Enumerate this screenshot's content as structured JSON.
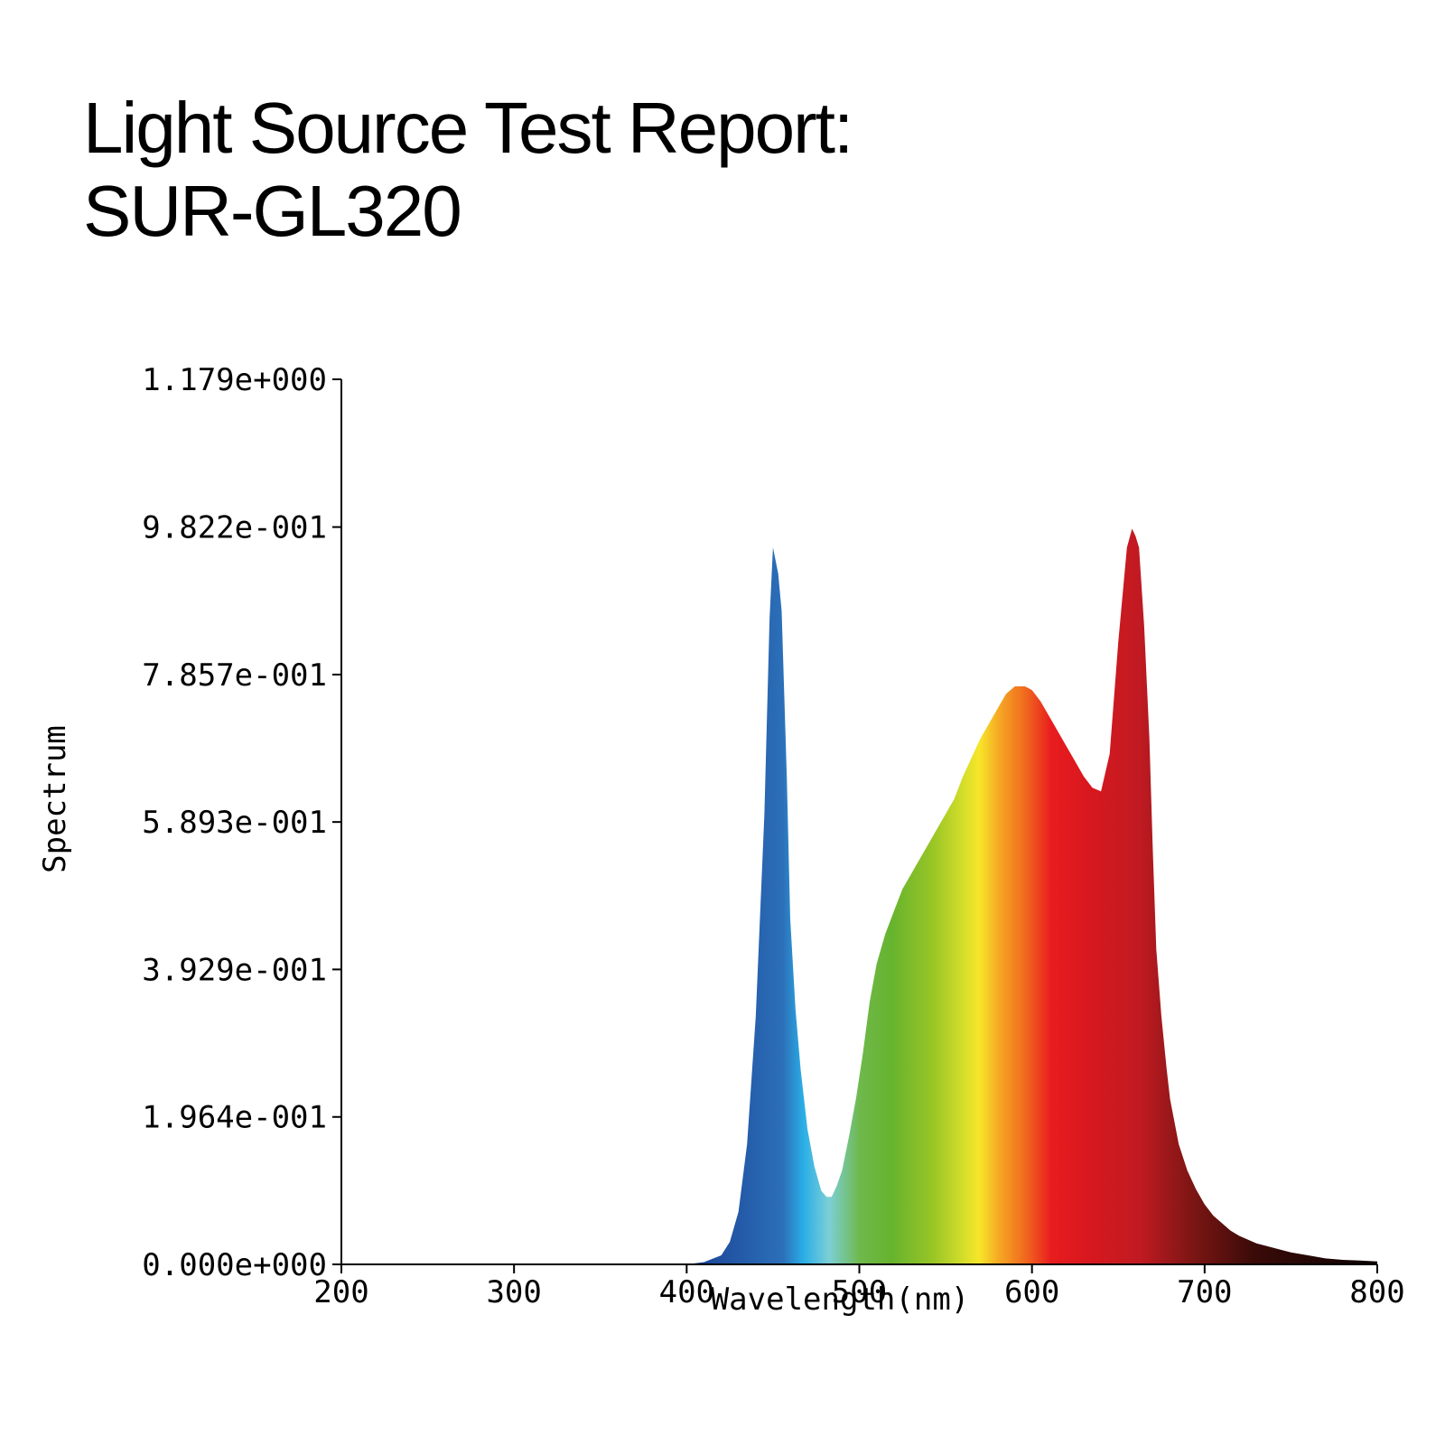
{
  "title": {
    "line1": "Light Source Test Report:",
    "line2": "SUR-GL320"
  },
  "chart_data": {
    "type": "area",
    "xlabel": "Wavelength(nm)",
    "ylabel": "Spectrum",
    "xlim": [
      200,
      800
    ],
    "ylim": [
      0,
      1.179
    ],
    "x_ticks": [
      200,
      300,
      400,
      500,
      600,
      700,
      800
    ],
    "y_ticks": [
      {
        "value": 0,
        "label": "0.000e+000"
      },
      {
        "value": 0.1964,
        "label": "1.964e-001"
      },
      {
        "value": 0.3929,
        "label": "3.929e-001"
      },
      {
        "value": 0.5893,
        "label": "5.893e-001"
      },
      {
        "value": 0.7857,
        "label": "7.857e-001"
      },
      {
        "value": 0.9822,
        "label": "9.822e-001"
      },
      {
        "value": 1.179,
        "label": "1.179e+000"
      }
    ],
    "grid": false,
    "fill": "visible-spectrum gradient",
    "series": [
      {
        "x": [
          200,
          380,
          400,
          410,
          420,
          425,
          430,
          435,
          440,
          445,
          448,
          450,
          453,
          455,
          458,
          460,
          463,
          466,
          470,
          474,
          478,
          481,
          484,
          487,
          490,
          494,
          498,
          502,
          506,
          510,
          515,
          520,
          525,
          530,
          535,
          540,
          545,
          550,
          555,
          560,
          565,
          570,
          575,
          580,
          585,
          590,
          593,
          596,
          600,
          605,
          610,
          615,
          620,
          625,
          630,
          635,
          640,
          645,
          650,
          655,
          658,
          660,
          662,
          665,
          668,
          670,
          672,
          675,
          678,
          680,
          685,
          690,
          695,
          700,
          705,
          710,
          715,
          720,
          730,
          740,
          750,
          760,
          770,
          780,
          790,
          800
        ],
        "y": [
          0.0,
          0.0,
          0.0,
          0.003,
          0.012,
          0.03,
          0.07,
          0.16,
          0.33,
          0.6,
          0.86,
          0.955,
          0.92,
          0.87,
          0.65,
          0.46,
          0.34,
          0.26,
          0.18,
          0.13,
          0.098,
          0.09,
          0.09,
          0.105,
          0.125,
          0.17,
          0.22,
          0.28,
          0.35,
          0.4,
          0.44,
          0.47,
          0.5,
          0.52,
          0.54,
          0.56,
          0.58,
          0.6,
          0.62,
          0.65,
          0.675,
          0.7,
          0.72,
          0.74,
          0.76,
          0.77,
          0.77,
          0.77,
          0.765,
          0.75,
          0.73,
          0.71,
          0.69,
          0.67,
          0.65,
          0.635,
          0.63,
          0.68,
          0.83,
          0.955,
          0.98,
          0.97,
          0.955,
          0.85,
          0.7,
          0.55,
          0.42,
          0.33,
          0.26,
          0.22,
          0.16,
          0.125,
          0.1,
          0.08,
          0.065,
          0.055,
          0.045,
          0.038,
          0.028,
          0.022,
          0.016,
          0.012,
          0.008,
          0.006,
          0.005,
          0.004
        ]
      }
    ]
  }
}
